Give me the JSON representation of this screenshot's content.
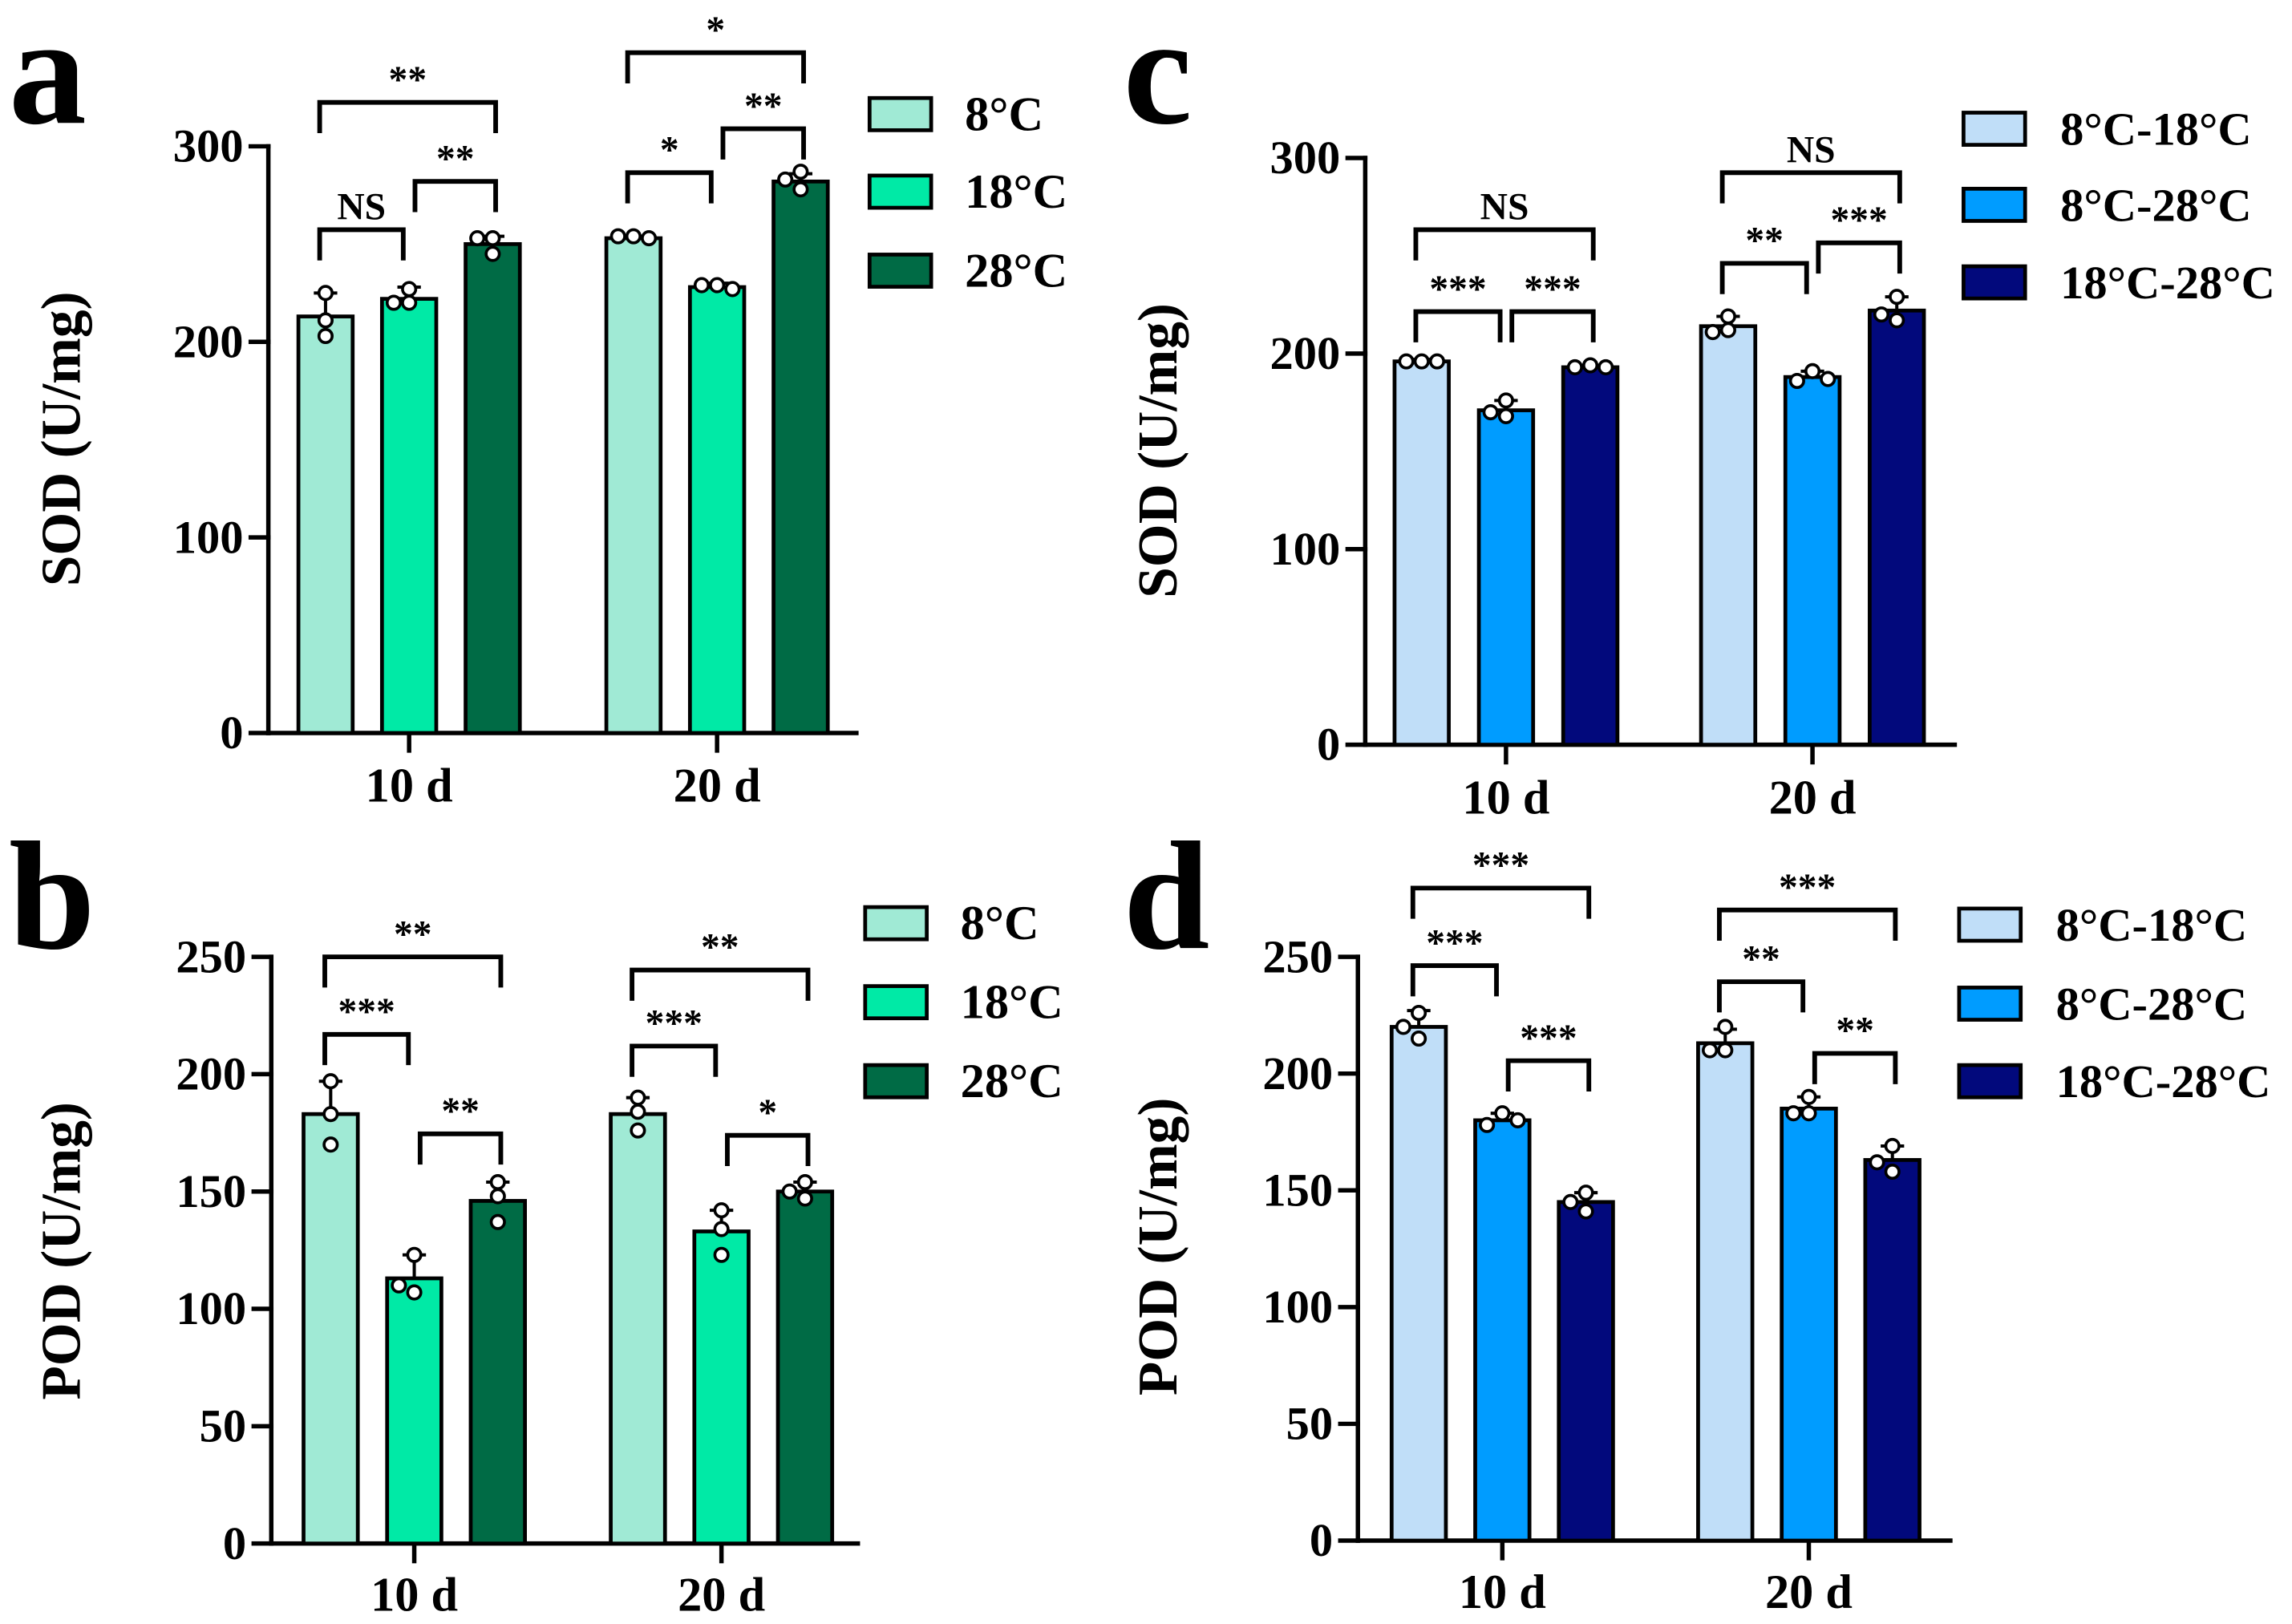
{
  "chart_data": [
    {
      "panel": "a",
      "type": "bar",
      "ylabel": "SOD (U/mg)",
      "ylim": [
        0,
        300
      ],
      "yticks": [
        0,
        100,
        200,
        300
      ],
      "categories": [
        "10 d",
        "20 d"
      ],
      "series": [
        {
          "name": "8°C",
          "color": "#A0EAD5",
          "values": [
            213,
            253
          ],
          "sd": [
            12,
            1
          ],
          "points": [
            [
              225,
              203,
              211
            ],
            [
              254,
              254,
              253
            ]
          ]
        },
        {
          "name": "18°C",
          "color": "#00EAA6",
          "values": [
            222,
            228
          ],
          "sd": [
            6,
            2
          ],
          "points": [
            [
              227,
              220,
              220
            ],
            [
              229,
              229,
              227
            ]
          ]
        },
        {
          "name": "28°C",
          "color": "#006B45",
          "values": [
            250,
            282
          ],
          "sd": [
            4,
            4
          ],
          "points": [
            [
              253,
              253,
              245
            ],
            [
              287,
              278,
              283
            ]
          ]
        }
      ],
      "comparisons": [
        {
          "category": 0,
          "from": 0,
          "to": 2,
          "label": "**"
        },
        {
          "category": 0,
          "from": 0,
          "to": 1,
          "label": "NS"
        },
        {
          "category": 0,
          "from": 1,
          "to": 2,
          "label": "**"
        },
        {
          "category": 1,
          "from": 0,
          "to": 2,
          "label": "*"
        },
        {
          "category": 1,
          "from": 0,
          "to": 1,
          "label": "*"
        },
        {
          "category": 1,
          "from": 1,
          "to": 2,
          "label": "**"
        }
      ]
    },
    {
      "panel": "b",
      "type": "bar",
      "ylabel": "POD (U/mg)",
      "ylim": [
        0,
        250
      ],
      "yticks": [
        0,
        50,
        100,
        150,
        200,
        250
      ],
      "categories": [
        "10 d",
        "20 d"
      ],
      "series": [
        {
          "name": "8°C",
          "color": "#A0EAD5",
          "values": [
            183,
            183
          ],
          "sd": [
            14,
            7
          ],
          "points": [
            [
              197,
              170,
              183
            ],
            [
              190,
              176,
              184
            ]
          ]
        },
        {
          "name": "18°C",
          "color": "#00EAA6",
          "values": [
            113,
            133
          ],
          "sd": [
            10,
            9
          ],
          "points": [
            [
              123,
              107,
              110
            ],
            [
              142,
              123,
              134
            ]
          ]
        },
        {
          "name": "28°C",
          "color": "#006B45",
          "values": [
            146,
            150
          ],
          "sd": [
            8,
            4
          ],
          "points": [
            [
              154,
              148,
              137
            ],
            [
              154,
              150,
              147
            ]
          ]
        }
      ],
      "comparisons": [
        {
          "category": 0,
          "from": 0,
          "to": 2,
          "label": "**"
        },
        {
          "category": 0,
          "from": 0,
          "to": 1,
          "label": "***"
        },
        {
          "category": 0,
          "from": 1,
          "to": 2,
          "label": "**"
        },
        {
          "category": 1,
          "from": 0,
          "to": 2,
          "label": "**"
        },
        {
          "category": 1,
          "from": 0,
          "to": 1,
          "label": "***"
        },
        {
          "category": 1,
          "from": 1,
          "to": 2,
          "label": "*"
        }
      ]
    },
    {
      "panel": "c",
      "type": "bar",
      "ylabel": "SOD (U/mg)",
      "ylim": [
        0,
        300
      ],
      "yticks": [
        0,
        100,
        200,
        300
      ],
      "categories": [
        "10 d",
        "20 d"
      ],
      "series": [
        {
          "name": "8°C-18°C",
          "color": "#C0DEF8",
          "values": [
            196,
            214
          ],
          "sd": [
            1,
            5
          ],
          "points": [
            [
              196,
              196,
              196
            ],
            [
              219,
              212,
              211
            ]
          ]
        },
        {
          "name": "8°C-28°C",
          "color": "#009CFF",
          "values": [
            171,
            188
          ],
          "sd": [
            5,
            3
          ],
          "points": [
            [
              176,
              168,
              170
            ],
            [
              191,
              186,
              187
            ]
          ]
        },
        {
          "name": "18°C-28°C",
          "color": "#02097C",
          "values": [
            193,
            222
          ],
          "sd": [
            1,
            7
          ],
          "points": [
            [
              194,
              193,
              193
            ],
            [
              229,
              217,
              220
            ]
          ]
        }
      ],
      "comparisons": [
        {
          "category": 0,
          "from": 0,
          "to": 2,
          "label": "NS"
        },
        {
          "category": 0,
          "from": 0,
          "to": 1,
          "label": "***"
        },
        {
          "category": 0,
          "from": 1,
          "to": 2,
          "label": "***"
        },
        {
          "category": 1,
          "from": 0,
          "to": 2,
          "label": "NS"
        },
        {
          "category": 1,
          "from": 0,
          "to": 1,
          "label": "**"
        },
        {
          "category": 1,
          "from": 1,
          "to": 2,
          "label": "***"
        }
      ]
    },
    {
      "panel": "d",
      "type": "bar",
      "ylabel": "POD (U/mg)",
      "ylim": [
        0,
        250
      ],
      "yticks": [
        0,
        50,
        100,
        150,
        200,
        250
      ],
      "categories": [
        "10 d",
        "20 d"
      ],
      "series": [
        {
          "name": "8°C-18°C",
          "color": "#C0DEF8",
          "values": [
            220,
            213
          ],
          "sd": [
            7,
            6
          ],
          "points": [
            [
              226,
              215,
              220
            ],
            [
              220,
              210,
              210
            ]
          ]
        },
        {
          "name": "8°C-28°C",
          "color": "#009CFF",
          "values": [
            180,
            185
          ],
          "sd": [
            3,
            5
          ],
          "points": [
            [
              183,
              178,
              180
            ],
            [
              190,
              183,
              183
            ]
          ]
        },
        {
          "name": "18°C-28°C",
          "color": "#02097C",
          "values": [
            145,
            163
          ],
          "sd": [
            4,
            6
          ],
          "points": [
            [
              149,
              141,
              145
            ],
            [
              169,
              158,
              162
            ]
          ]
        }
      ],
      "comparisons": [
        {
          "category": 0,
          "from": 0,
          "to": 2,
          "label": "***"
        },
        {
          "category": 0,
          "from": 0,
          "to": 1,
          "label": "***"
        },
        {
          "category": 0,
          "from": 1,
          "to": 2,
          "label": "***"
        },
        {
          "category": 1,
          "from": 0,
          "to": 2,
          "label": "***"
        },
        {
          "category": 1,
          "from": 0,
          "to": 1,
          "label": "**"
        },
        {
          "category": 1,
          "from": 1,
          "to": 2,
          "label": "**"
        }
      ]
    }
  ]
}
